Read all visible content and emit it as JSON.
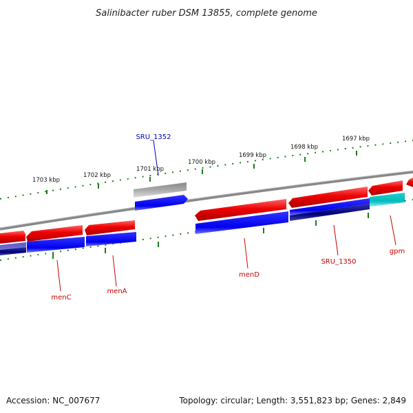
{
  "title": "Salinibacter ruber DSM 13855, complete genome",
  "accession": "Accession: NC_007677",
  "summary": "Topology: circular; Length: 3,551,823 bp; Genes: 2,849",
  "ruler_labels": [
    "1703 kbp",
    "1702 kbp",
    "1701 kbp",
    "1700 kbp",
    "1699 kbp",
    "1698 kbp",
    "1697 kbp"
  ],
  "gene_labels": [
    {
      "name": "SRU_1352",
      "color": "#0000aa"
    },
    {
      "name": "menC",
      "color": "#cc0000"
    },
    {
      "name": "menA",
      "color": "#cc0000"
    },
    {
      "name": "menD",
      "color": "#cc0000"
    },
    {
      "name": "SRU_1350",
      "color": "#cc0000"
    },
    {
      "name": "gpm",
      "color": "#cc0000"
    }
  ],
  "colors": {
    "forward_cds": "#ee0000",
    "reverse_cds": "#0000ee",
    "dark_cds": "#000077",
    "cyan_cds": "#00bbbb",
    "grey_feature": "#aaaaaa",
    "backbone": "#888888",
    "ruler": "#1a7a1a"
  }
}
